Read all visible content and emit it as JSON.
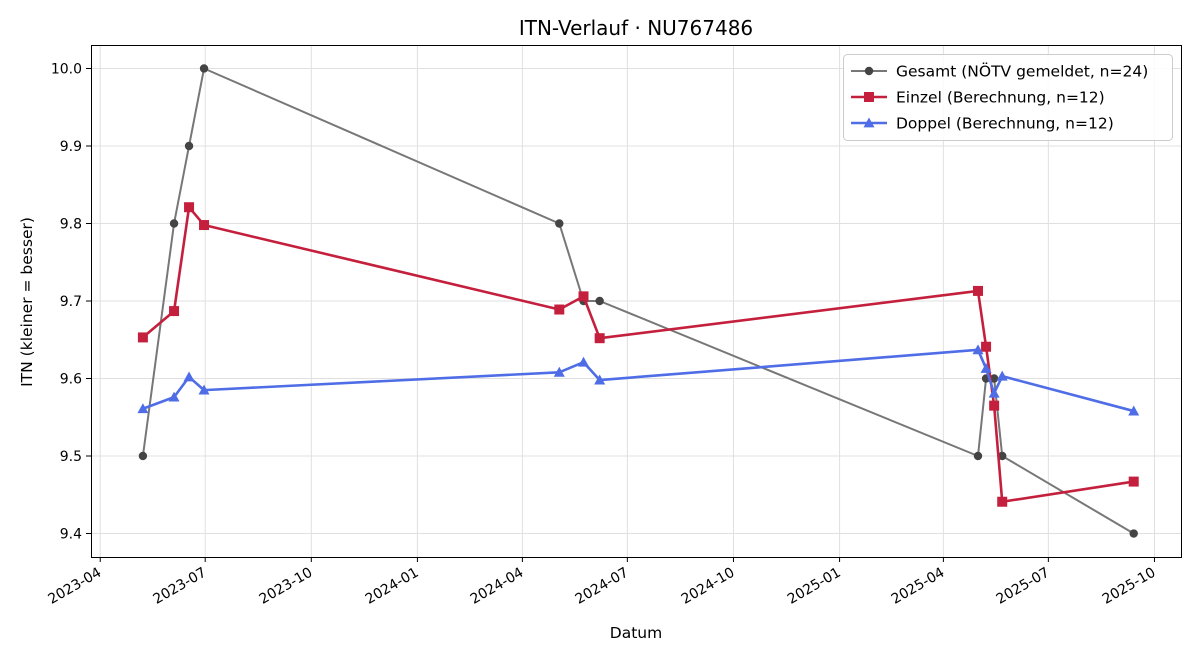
{
  "chart_data": {
    "type": "line",
    "title": "ITN-Verlauf · NU767486",
    "xlabel": "Datum",
    "ylabel": "ITN  (kleiner = besser)",
    "xlim": [
      "2023-03-24",
      "2025-10-24"
    ],
    "ylim": [
      9.3697,
      10.0303
    ],
    "grid": true,
    "legend_position": "top-right",
    "x_ticks": [
      {
        "date": "2023-04-01",
        "label": "2023-04"
      },
      {
        "date": "2023-07-01",
        "label": "2023-07"
      },
      {
        "date": "2023-10-01",
        "label": "2023-10"
      },
      {
        "date": "2024-01-01",
        "label": "2024-01"
      },
      {
        "date": "2024-04-01",
        "label": "2024-04"
      },
      {
        "date": "2024-07-01",
        "label": "2024-07"
      },
      {
        "date": "2024-10-01",
        "label": "2024-10"
      },
      {
        "date": "2025-01-01",
        "label": "2025-01"
      },
      {
        "date": "2025-04-01",
        "label": "2025-04"
      },
      {
        "date": "2025-07-01",
        "label": "2025-07"
      },
      {
        "date": "2025-10-01",
        "label": "2025-10"
      }
    ],
    "y_ticks": [
      {
        "value": 9.4,
        "label": "9.4"
      },
      {
        "value": 9.5,
        "label": "9.5"
      },
      {
        "value": 9.6,
        "label": "9.6"
      },
      {
        "value": 9.7,
        "label": "9.7"
      },
      {
        "value": 9.8,
        "label": "9.8"
      },
      {
        "value": 9.9,
        "label": "9.9"
      },
      {
        "value": 10.0,
        "label": "10.0"
      }
    ],
    "series": [
      {
        "name": "Gesamt (NÖTV gemeldet, n=24)",
        "color": "#777777",
        "marker_color": "#444444",
        "marker": "circle",
        "points": [
          {
            "x": "2023-05-08",
            "y": 9.5
          },
          {
            "x": "2023-06-04",
            "y": 9.8
          },
          {
            "x": "2023-06-17",
            "y": 9.9
          },
          {
            "x": "2023-06-30",
            "y": 10.0
          },
          {
            "x": "2024-05-03",
            "y": 9.8
          },
          {
            "x": "2024-05-24",
            "y": 9.7
          },
          {
            "x": "2024-06-07",
            "y": 9.7
          },
          {
            "x": "2025-05-01",
            "y": 9.5
          },
          {
            "x": "2025-05-08",
            "y": 9.6
          },
          {
            "x": "2025-05-15",
            "y": 9.6
          },
          {
            "x": "2025-05-22",
            "y": 9.5
          },
          {
            "x": "2025-09-13",
            "y": 9.4
          }
        ]
      },
      {
        "name": "Einzel (Berechnung, n=12)",
        "color": "#c4203e",
        "marker_color": "#c4203e",
        "marker": "square",
        "points": [
          {
            "x": "2023-05-08",
            "y": 9.653
          },
          {
            "x": "2023-06-04",
            "y": 9.687
          },
          {
            "x": "2023-06-17",
            "y": 9.821
          },
          {
            "x": "2023-06-30",
            "y": 9.798
          },
          {
            "x": "2024-05-03",
            "y": 9.689
          },
          {
            "x": "2024-05-24",
            "y": 9.706
          },
          {
            "x": "2024-06-07",
            "y": 9.652
          },
          {
            "x": "2025-05-01",
            "y": 9.713
          },
          {
            "x": "2025-05-08",
            "y": 9.641
          },
          {
            "x": "2025-05-15",
            "y": 9.565
          },
          {
            "x": "2025-05-22",
            "y": 9.441
          },
          {
            "x": "2025-09-13",
            "y": 9.467
          }
        ]
      },
      {
        "name": "Doppel (Berechnung, n=12)",
        "color": "#4f6de6",
        "marker_color": "#4f6de6",
        "marker": "triangle",
        "points": [
          {
            "x": "2023-05-08",
            "y": 9.561
          },
          {
            "x": "2023-06-04",
            "y": 9.576
          },
          {
            "x": "2023-06-17",
            "y": 9.602
          },
          {
            "x": "2023-06-30",
            "y": 9.585
          },
          {
            "x": "2024-05-03",
            "y": 9.608
          },
          {
            "x": "2024-05-24",
            "y": 9.621
          },
          {
            "x": "2024-06-07",
            "y": 9.598
          },
          {
            "x": "2025-05-01",
            "y": 9.637
          },
          {
            "x": "2025-05-08",
            "y": 9.613
          },
          {
            "x": "2025-05-15",
            "y": 9.581
          },
          {
            "x": "2025-05-22",
            "y": 9.603
          },
          {
            "x": "2025-09-13",
            "y": 9.558
          }
        ]
      }
    ]
  }
}
